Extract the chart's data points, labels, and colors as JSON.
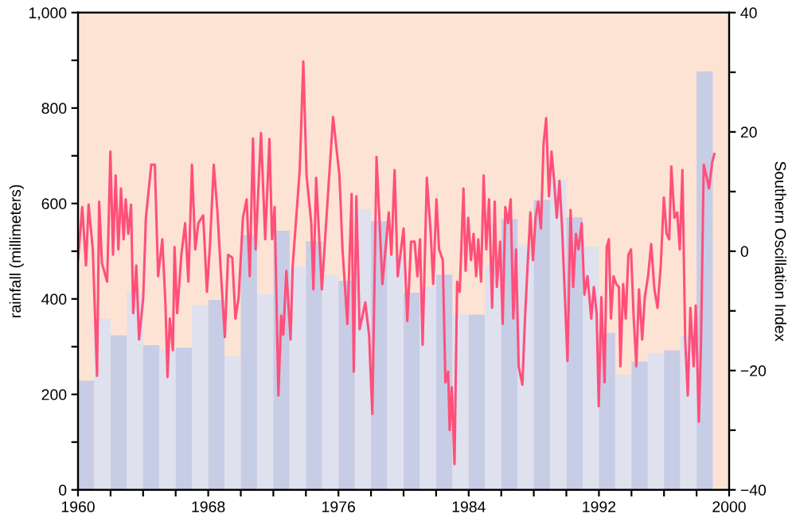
{
  "chart_data": {
    "type": "bar",
    "xlabel": null,
    "ylabel": "rainfall (millimeters)",
    "y2label": "Southern Oscillation Index",
    "series": [
      {
        "colors": [
          "#c8cde6",
          "#dfe1ef",
          "#c8cde6",
          "#dfe1ef",
          "#c8cde6",
          "#dfe1ef",
          "#c8cde6",
          "#dfe1ef",
          "#c8cde6",
          "#dfe1ef",
          "#c8cde6",
          "#dfe1ef",
          "#c8cde6",
          "#dfe1ef",
          "#c8cde6",
          "#dfe1ef",
          "#c8cde6",
          "#dfe1ef",
          "#c8cde6",
          "#dfe1ef",
          "#c8cde6",
          "#dfe1ef",
          "#c8cde6",
          "#dfe1ef",
          "#c8cde6",
          "#dfe1ef",
          "#c8cde6",
          "#dfe1ef",
          "#c8cde6",
          "#dfe1ef",
          "#c8cde6",
          "#dfe1ef",
          "#c8cde6",
          "#dfe1ef",
          "#c8cde6",
          "#dfe1ef",
          "#c8cde6",
          "#dfe1ef",
          "#c8cde6"
        ],
        "x": [
          1960.5,
          1961.5,
          1962.5,
          1963.5,
          1964.5,
          1965.5,
          1966.5,
          1967.5,
          1968.5,
          1969.5,
          1970.5,
          1971.5,
          1972.5,
          1973.5,
          1974.5,
          1975.5,
          1976.5,
          1977.5,
          1978.5,
          1979.5,
          1980.5,
          1981.5,
          1982.5,
          1983.5,
          1984.5,
          1985.5,
          1986.5,
          1987.5,
          1988.5,
          1989.5,
          1990.5,
          1991.5,
          1992.5,
          1993.5,
          1994.5,
          1995.5,
          1996.5,
          1997.5,
          1998.5
        ],
        "values": [
          229,
          358,
          324,
          414,
          303,
          294,
          298,
          387,
          398,
          280,
          534,
          410,
          543,
          468,
          521,
          450,
          438,
          588,
          563,
          490,
          413,
          426,
          451,
          367,
          367,
          471,
          567,
          514,
          607,
          649,
          571,
          510,
          329,
          242,
          269,
          286,
          292,
          323,
          877
        ]
      },
      {
        "type": "line",
        "axis": "y2",
        "color": "#ff4f7a",
        "x": [
          1960.0,
          1960.26,
          1960.49,
          1960.65,
          1960.91,
          1961.17,
          1961.3,
          1961.47,
          1961.79,
          1961.99,
          1962.15,
          1962.31,
          1962.48,
          1962.64,
          1962.8,
          1962.93,
          1963.09,
          1963.26,
          1963.39,
          1963.58,
          1963.75,
          1964.01,
          1964.17,
          1964.5,
          1964.72,
          1964.92,
          1965.18,
          1965.37,
          1965.5,
          1965.64,
          1965.83,
          1965.93,
          1966.09,
          1966.35,
          1966.58,
          1966.78,
          1967.0,
          1967.2,
          1967.39,
          1967.69,
          1967.92,
          1968.11,
          1968.34,
          1968.57,
          1968.76,
          1969.02,
          1969.22,
          1969.48,
          1969.67,
          1969.87,
          1970.13,
          1970.36,
          1970.55,
          1970.75,
          1970.91,
          1971.24,
          1971.5,
          1971.76,
          1971.92,
          1972.08,
          1972.31,
          1972.48,
          1972.61,
          1972.8,
          1973.06,
          1973.19,
          1973.62,
          1973.84,
          1974.04,
          1974.33,
          1974.46,
          1974.63,
          1974.98,
          1975.41,
          1975.67,
          1976.06,
          1976.25,
          1976.55,
          1976.81,
          1976.94,
          1977.1,
          1977.3,
          1977.65,
          1977.88,
          1978.08,
          1978.34,
          1978.7,
          1979.09,
          1979.25,
          1979.45,
          1979.64,
          1980.0,
          1980.23,
          1980.46,
          1980.68,
          1980.85,
          1981.01,
          1981.17,
          1981.43,
          1981.66,
          1981.82,
          1982.02,
          1982.18,
          1982.41,
          1982.57,
          1982.74,
          1982.83,
          1982.96,
          1983.13,
          1983.29,
          1983.45,
          1983.68,
          1983.81,
          1983.97,
          1984.14,
          1984.3,
          1984.46,
          1984.59,
          1984.76,
          1984.92,
          1985.08,
          1985.25,
          1985.44,
          1985.6,
          1985.73,
          1985.93,
          1986.09,
          1986.25,
          1986.42,
          1986.58,
          1986.74,
          1986.91,
          1987.07,
          1987.3,
          1987.46,
          1987.62,
          1987.79,
          1987.95,
          1988.11,
          1988.27,
          1988.44,
          1988.6,
          1988.76,
          1988.93,
          1989.09,
          1989.25,
          1989.41,
          1989.58,
          1989.74,
          1990.07,
          1990.26,
          1990.42,
          1990.59,
          1990.75,
          1990.94,
          1991.11,
          1991.3,
          1991.53,
          1991.69,
          1991.86,
          1991.99,
          1992.15,
          1992.35,
          1992.48,
          1992.61,
          1992.74,
          1992.9,
          1993.06,
          1993.23,
          1993.32,
          1993.49,
          1993.65,
          1993.81,
          1993.97,
          1994.14,
          1994.3,
          1994.46,
          1994.66,
          1994.82,
          1995.02,
          1995.21,
          1995.41,
          1995.6,
          1995.8,
          1995.99,
          1996.16,
          1996.32,
          1996.45,
          1996.64,
          1996.81,
          1996.97,
          1997.13,
          1997.3,
          1997.46,
          1997.62,
          1997.82,
          1997.95,
          1998.14,
          1998.27,
          1998.44,
          1998.63,
          1998.76,
          1998.96,
          1999.09
        ],
        "values": [
          -1.5,
          7.4,
          -2.4,
          7.8,
          0.3,
          -20.9,
          8.3,
          -2.0,
          -5.1,
          16.7,
          -0.6,
          12.7,
          0.3,
          10.5,
          2.0,
          8.7,
          2.9,
          7.8,
          -10.4,
          -2.4,
          -14.8,
          -7.7,
          5.6,
          14.5,
          14.5,
          -4.2,
          2.0,
          -8.6,
          -21.1,
          -11.3,
          -16.6,
          0.7,
          -10.4,
          -0.6,
          4.7,
          -5.1,
          14.5,
          0.3,
          4.7,
          6.0,
          -6.8,
          1.2,
          14.5,
          6.5,
          -2.8,
          -14.4,
          -0.6,
          -1.1,
          -11.3,
          -7.7,
          5.6,
          8.7,
          -4.2,
          18.9,
          0.3,
          19.8,
          2.0,
          18.8,
          2.0,
          7.4,
          -24.2,
          -10.8,
          -14.0,
          -3.3,
          -14.8,
          -2.4,
          13.6,
          31.8,
          12.7,
          4.7,
          -6.4,
          12.3,
          -6.4,
          11.8,
          22.5,
          12.7,
          0.3,
          -12.2,
          9.6,
          -20.2,
          9.2,
          -13.1,
          -8.6,
          -14.0,
          -27.3,
          15.8,
          -5.5,
          6.5,
          -0.6,
          13.6,
          -4.2,
          3.8,
          -11.7,
          1.6,
          1.6,
          -4.2,
          2.0,
          -15.7,
          12.3,
          3.4,
          -5.5,
          8.7,
          0.3,
          -1.5,
          -22.0,
          -20.2,
          -30.0,
          -22.8,
          -35.7,
          -5.1,
          -6.8,
          10.5,
          -3.3,
          5.6,
          -1.5,
          2.9,
          -4.2,
          2.0,
          -5.1,
          12.7,
          0.3,
          8.7,
          -9.5,
          8.3,
          -6.0,
          1.6,
          -12.2,
          7.4,
          4.7,
          8.7,
          -11.3,
          0.3,
          -19.3,
          -22.4,
          -11.3,
          -2.4,
          6.5,
          -1.5,
          5.6,
          8.3,
          3.8,
          18.0,
          22.3,
          9.2,
          16.7,
          11.8,
          5.6,
          11.8,
          3.8,
          -18.4,
          6.9,
          -6.0,
          2.9,
          0.3,
          4.7,
          -7.3,
          -4.2,
          -11.3,
          -6.0,
          -10.4,
          -26.0,
          -7.7,
          -22.0,
          0.7,
          2.0,
          -11.3,
          -4.2,
          -5.5,
          -6.0,
          -19.3,
          -5.5,
          -11.3,
          -0.6,
          0.3,
          -11.3,
          -19.3,
          -6.4,
          -14.8,
          -7.7,
          -4.2,
          1.2,
          -6.4,
          -9.5,
          -2.4,
          9.0,
          2.9,
          2.0,
          14.2,
          5.6,
          6.5,
          0.3,
          13.6,
          -14.8,
          -24.2,
          -9.5,
          -19.3,
          -9.1,
          -28.6,
          -15.7,
          14.5,
          12.3,
          10.5,
          14.9,
          16.3
        ]
      }
    ],
    "xlim": [
      1960,
      2000
    ],
    "xticks": [
      1960,
      {
        "value": 1962,
        "label": null
      },
      {
        "value": 1964,
        "label": null
      },
      {
        "value": 1966,
        "label": null
      },
      1968,
      {
        "value": 1970,
        "label": null
      },
      {
        "value": 1972,
        "label": null
      },
      {
        "value": 1974,
        "label": null
      },
      1976,
      {
        "value": 1978,
        "label": null
      },
      {
        "value": 1980,
        "label": null
      },
      {
        "value": 1982,
        "label": null
      },
      1984,
      {
        "value": 1986,
        "label": null
      },
      {
        "value": 1988,
        "label": null
      },
      {
        "value": 1990,
        "label": null
      },
      1992,
      {
        "value": 1994,
        "label": null
      },
      {
        "value": 1996,
        "label": null
      },
      {
        "value": 1998,
        "label": null
      },
      2000
    ],
    "ylim": [
      0,
      1000
    ],
    "yticks": [
      0,
      {
        "value": 100,
        "label": null
      },
      200,
      {
        "value": 300,
        "label": null
      },
      400,
      {
        "value": 500,
        "label": null
      },
      600,
      {
        "value": 700,
        "label": null
      },
      800,
      {
        "value": 900,
        "label": null
      },
      {
        "value": 1000,
        "label": "1,000"
      }
    ],
    "y2lim": [
      -40,
      40
    ],
    "y2ticks": [
      {
        "value": -40,
        "label": "−40"
      },
      {
        "value": -30,
        "label": null
      },
      {
        "value": -20,
        "label": "−20"
      },
      {
        "value": -10,
        "label": null
      },
      0,
      {
        "value": 10,
        "label": null
      },
      20,
      {
        "value": 30,
        "label": null
      },
      40
    ],
    "grid": false,
    "legend": false
  }
}
